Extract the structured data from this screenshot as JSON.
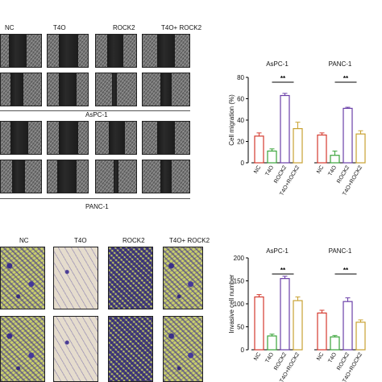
{
  "wound_panel": {
    "col_labels": [
      "NC",
      "T4O",
      "ROCK2",
      "T4O+ ROCK2"
    ],
    "cell_lines": [
      "AsPC-1",
      "PANC-1"
    ]
  },
  "transwell_panel": {
    "col_labels": [
      "NC",
      "T4O",
      "ROCK2",
      "T4O+ ROCK2"
    ]
  },
  "colors": {
    "NC": "#d43a2e",
    "T4O": "#3aa43a",
    "ROCK2": "#6a3fa8",
    "T4O+ROCK2": "#c9a232",
    "significance": "#000000"
  },
  "chart_data": [
    {
      "type": "bar",
      "ylabel": "Cell migration (%)",
      "ylim": [
        0,
        80
      ],
      "yticks": [
        "0",
        "20",
        "40",
        "60",
        "80"
      ],
      "categories": [
        "NC",
        "T4O",
        "ROCK2",
        "T4O+ROCK2"
      ],
      "groups": [
        {
          "name": "AsPC-1",
          "values": [
            25,
            11,
            63,
            32
          ],
          "errors": [
            3,
            2,
            2,
            6
          ]
        },
        {
          "name": "PANC-1",
          "values": [
            26,
            7,
            51,
            27
          ],
          "errors": [
            2,
            4,
            1,
            3
          ]
        }
      ],
      "significance": "**"
    },
    {
      "type": "bar",
      "ylabel": "Invasive cell number",
      "ylim": [
        0,
        200
      ],
      "yticks": [
        "0",
        "50",
        "100",
        "150",
        "200"
      ],
      "categories": [
        "NC",
        "T4O",
        "ROCK2",
        "T4O+ROCK2"
      ],
      "groups": [
        {
          "name": "AsPC-1",
          "values": [
            115,
            30,
            155,
            107
          ],
          "errors": [
            5,
            4,
            5,
            8
          ]
        },
        {
          "name": "PANC-1",
          "values": [
            80,
            28,
            105,
            60
          ],
          "errors": [
            6,
            3,
            8,
            5
          ]
        }
      ],
      "significance": "**"
    }
  ]
}
